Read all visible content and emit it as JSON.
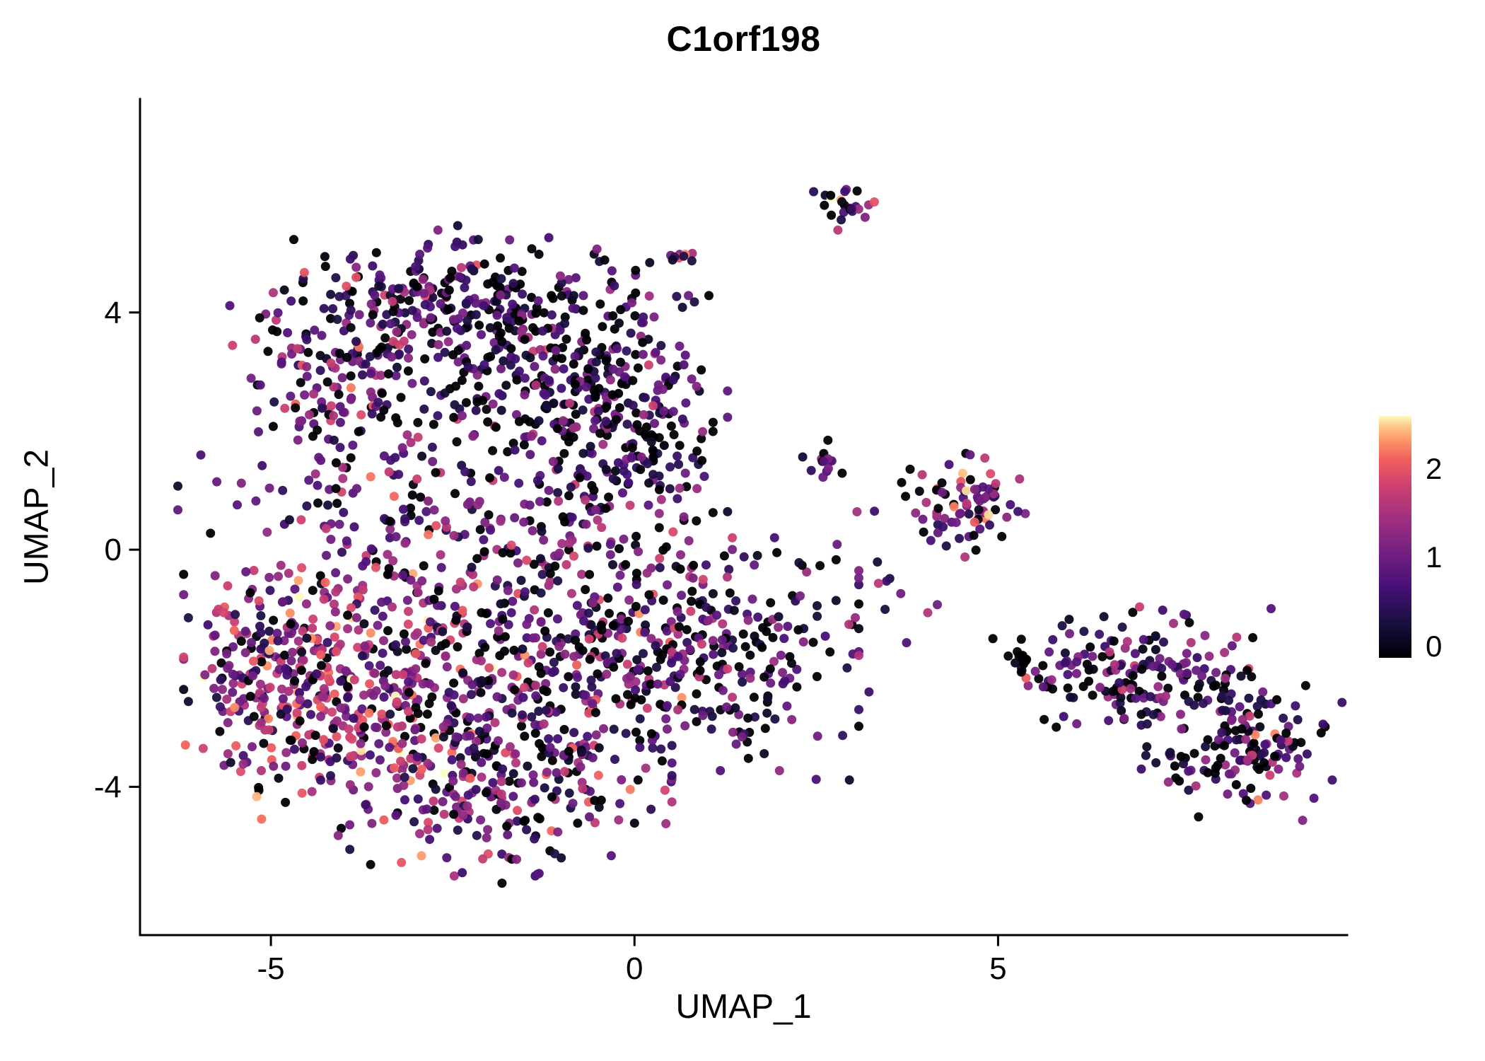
{
  "chart_data": {
    "type": "scatter",
    "title": "C1orf198",
    "xlabel": "UMAP_1",
    "ylabel": "UMAP_2",
    "xlim": [
      -6.8,
      9.8
    ],
    "ylim": [
      -6.5,
      7.6
    ],
    "x_ticks": [
      -5,
      0,
      5
    ],
    "y_ticks": [
      -4,
      0,
      4
    ],
    "grid": false,
    "legend": {
      "type": "colorbar",
      "position": "right",
      "ticks": [
        0,
        1,
        2
      ],
      "min": 0,
      "max": 2.6
    },
    "colormap": {
      "name": "magma",
      "stops": [
        [
          0.0,
          "#000004"
        ],
        [
          0.14,
          "#180f3e"
        ],
        [
          0.29,
          "#451077"
        ],
        [
          0.43,
          "#721f81"
        ],
        [
          0.57,
          "#9f2f7f"
        ],
        [
          0.71,
          "#cd4071"
        ],
        [
          0.82,
          "#f1605d"
        ],
        [
          0.9,
          "#fd9567"
        ],
        [
          0.96,
          "#feca8d"
        ],
        [
          1.0,
          "#fcfdbf"
        ]
      ]
    },
    "point_radius_px": 6.5,
    "seed": 42,
    "clusters": [
      {
        "name": "main-lower-left-warm",
        "cx": -3.9,
        "cy": -2.4,
        "sx": 1.0,
        "sy": 1.0,
        "n": 420,
        "expr_mean": 1.45,
        "expr_sd": 0.6,
        "frac_zero": 0.1
      },
      {
        "name": "main-left-edge",
        "cx": -5.1,
        "cy": -1.9,
        "sx": 0.45,
        "sy": 0.75,
        "n": 110,
        "expr_mean": 1.2,
        "expr_sd": 0.6,
        "frac_zero": 0.12
      },
      {
        "name": "main-bottom",
        "cx": -1.9,
        "cy": -3.9,
        "sx": 1.05,
        "sy": 0.75,
        "n": 260,
        "expr_mean": 1.0,
        "expr_sd": 0.6,
        "frac_zero": 0.18
      },
      {
        "name": "main-center",
        "cx": -1.3,
        "cy": -1.4,
        "sx": 1.15,
        "sy": 1.0,
        "n": 300,
        "expr_mean": 0.95,
        "expr_sd": 0.6,
        "frac_zero": 0.2
      },
      {
        "name": "main-right-lobe",
        "cx": 0.9,
        "cy": -1.7,
        "sx": 0.95,
        "sy": 0.95,
        "n": 280,
        "expr_mean": 0.8,
        "expr_sd": 0.55,
        "frac_zero": 0.25
      },
      {
        "name": "upper-top-dense",
        "cx": -2.4,
        "cy": 4.2,
        "sx": 1.05,
        "sy": 0.55,
        "n": 270,
        "expr_mean": 0.75,
        "expr_sd": 0.55,
        "frac_zero": 0.3
      },
      {
        "name": "upper-left-arm",
        "cx": -4.3,
        "cy": 3.0,
        "sx": 0.55,
        "sy": 0.65,
        "n": 120,
        "expr_mean": 1.05,
        "expr_sd": 0.55,
        "frac_zero": 0.15
      },
      {
        "name": "upper-mid",
        "cx": -1.6,
        "cy": 2.9,
        "sx": 1.0,
        "sy": 0.7,
        "n": 190,
        "expr_mean": 0.75,
        "expr_sd": 0.55,
        "frac_zero": 0.28
      },
      {
        "name": "upper-right-dense",
        "cx": -0.1,
        "cy": 2.1,
        "sx": 0.6,
        "sy": 0.95,
        "n": 230,
        "expr_mean": 0.7,
        "expr_sd": 0.5,
        "frac_zero": 0.3
      },
      {
        "name": "bridge-band",
        "cx": -2.6,
        "cy": 0.8,
        "sx": 1.6,
        "sy": 0.55,
        "n": 150,
        "expr_mean": 0.95,
        "expr_sd": 0.55,
        "frac_zero": 0.18
      },
      {
        "name": "top-small-cluster",
        "cx": 2.9,
        "cy": 5.85,
        "sx": 0.22,
        "sy": 0.2,
        "n": 24,
        "expr_mean": 1.1,
        "expr_sd": 0.8,
        "frac_zero": 0.25
      },
      {
        "name": "top-mini-cluster",
        "cx": 0.65,
        "cy": 4.95,
        "sx": 0.14,
        "sy": 0.1,
        "n": 9,
        "expr_mean": 1.4,
        "expr_sd": 0.7,
        "frac_zero": 0.1
      },
      {
        "name": "top-trail",
        "cx": 0.1,
        "cy": 4.1,
        "sx": 0.4,
        "sy": 0.5,
        "n": 12,
        "expr_mean": 0.4,
        "expr_sd": 0.5,
        "frac_zero": 0.45
      },
      {
        "name": "mid-right-cluster",
        "cx": 4.5,
        "cy": 0.75,
        "sx": 0.38,
        "sy": 0.38,
        "n": 80,
        "expr_mean": 1.15,
        "expr_sd": 0.6,
        "frac_zero": 0.15
      },
      {
        "name": "mid-right-pair",
        "cx": 2.6,
        "cy": 1.5,
        "sx": 0.22,
        "sy": 0.15,
        "n": 14,
        "expr_mean": 1.2,
        "expr_sd": 0.7,
        "frac_zero": 0.15
      },
      {
        "name": "mid-sparse",
        "cx": 3.2,
        "cy": -0.8,
        "sx": 0.85,
        "sy": 0.8,
        "n": 26,
        "expr_mean": 0.9,
        "expr_sd": 0.5,
        "frac_zero": 0.2
      },
      {
        "name": "right-band",
        "cx": 6.8,
        "cy": -2.0,
        "sx": 0.85,
        "sy": 0.45,
        "n": 170,
        "expr_mean": 0.85,
        "expr_sd": 0.55,
        "frac_zero": 0.25
      },
      {
        "name": "right-band-tail",
        "cx": 8.35,
        "cy": -3.3,
        "sx": 0.6,
        "sy": 0.55,
        "n": 150,
        "expr_mean": 0.9,
        "expr_sd": 0.6,
        "frac_zero": 0.22
      },
      {
        "name": "right-tight-pair",
        "cx": 5.3,
        "cy": -1.85,
        "sx": 0.1,
        "sy": 0.07,
        "n": 10,
        "expr_mean": 0.2,
        "expr_sd": 0.3,
        "frac_zero": 0.5
      }
    ]
  }
}
